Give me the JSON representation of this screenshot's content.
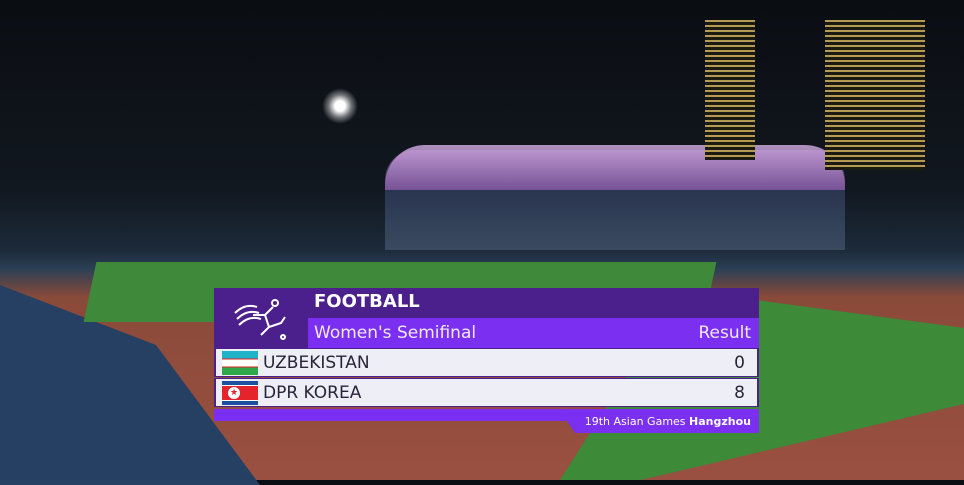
{
  "graphic": {
    "sport": "FOOTBALL",
    "event": "Women's Semifinal",
    "result_label": "Result",
    "teams": [
      {
        "name": "UZBEKISTAN",
        "score": "0",
        "flag": "uzbekistan-flag"
      },
      {
        "name": "DPR KOREA",
        "score": "8",
        "flag": "dpr-korea-flag"
      }
    ],
    "footer_prefix": "19th Asian Games",
    "footer_city": "Hangzhou",
    "colors": {
      "dark_purple": "#4b1f8c",
      "bright_purple": "#7b2ff0",
      "row_bg": "#eeeef6"
    }
  }
}
